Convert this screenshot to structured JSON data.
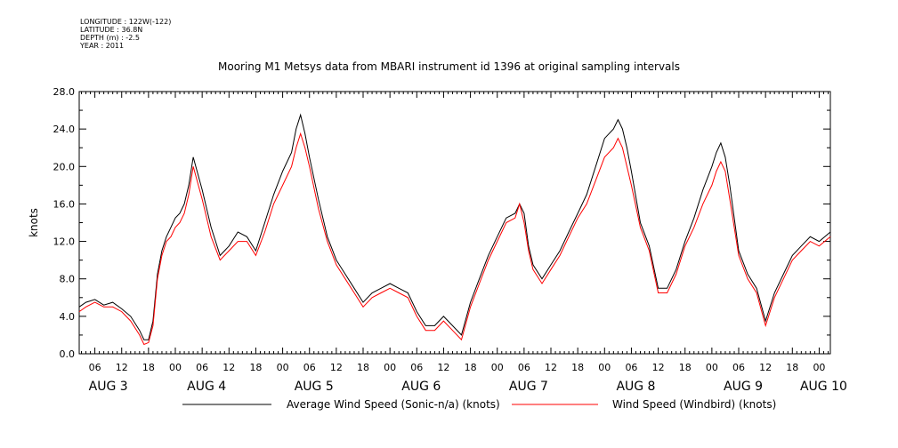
{
  "header": {
    "meta_lines": [
      "LONGITUDE : 122W(-122)",
      "LATITUDE : 36.8N",
      "DEPTH (m) : -2.5",
      "YEAR : 2011"
    ],
    "title": "Mooring M1 Metsys data from MBARI instrument id 1396 at original sampling intervals"
  },
  "chart_data": {
    "type": "line",
    "title": "Mooring M1 Metsys data from MBARI instrument id 1396 at original sampling intervals",
    "ylabel": "knots",
    "xlabel": "",
    "ylim": [
      0,
      28
    ],
    "yticks": [
      "0.0",
      "4.0",
      "8.0",
      "12.0",
      "16.0",
      "20.0",
      "24.0",
      "28.0"
    ],
    "x_unit": "hours since Aug 3 00:00",
    "xlim": [
      2.5,
      170.5
    ],
    "hour_ticks": [
      {
        "x": 6,
        "label": "06"
      },
      {
        "x": 12,
        "label": "12"
      },
      {
        "x": 18,
        "label": "18"
      },
      {
        "x": 24,
        "label": "00"
      },
      {
        "x": 30,
        "label": "06"
      },
      {
        "x": 36,
        "label": "12"
      },
      {
        "x": 42,
        "label": "18"
      },
      {
        "x": 48,
        "label": "00"
      },
      {
        "x": 54,
        "label": "06"
      },
      {
        "x": 60,
        "label": "12"
      },
      {
        "x": 66,
        "label": "18"
      },
      {
        "x": 72,
        "label": "00"
      },
      {
        "x": 78,
        "label": "06"
      },
      {
        "x": 84,
        "label": "12"
      },
      {
        "x": 90,
        "label": "18"
      },
      {
        "x": 96,
        "label": "00"
      },
      {
        "x": 102,
        "label": "06"
      },
      {
        "x": 108,
        "label": "12"
      },
      {
        "x": 114,
        "label": "18"
      },
      {
        "x": 120,
        "label": "00"
      },
      {
        "x": 126,
        "label": "06"
      },
      {
        "x": 132,
        "label": "12"
      },
      {
        "x": 138,
        "label": "18"
      },
      {
        "x": 144,
        "label": "00"
      },
      {
        "x": 150,
        "label": "06"
      },
      {
        "x": 156,
        "label": "12"
      },
      {
        "x": 162,
        "label": "18"
      },
      {
        "x": 168,
        "label": "00"
      }
    ],
    "day_labels": [
      {
        "x": 9,
        "label": "AUG  3"
      },
      {
        "x": 31,
        "label": "AUG  4"
      },
      {
        "x": 55,
        "label": "AUG  5"
      },
      {
        "x": 79,
        "label": "AUG  6"
      },
      {
        "x": 103,
        "label": "AUG  7"
      },
      {
        "x": 127,
        "label": "AUG  8"
      },
      {
        "x": 151,
        "label": "AUG  9"
      },
      {
        "x": 169,
        "label": "AUG 10"
      }
    ],
    "grid": false,
    "legend_position": "bottom",
    "series": [
      {
        "name": "Average Wind Speed (Sonic-n/a) (knots)",
        "color": "#000000",
        "x": [
          2.5,
          4,
          6,
          8,
          10,
          12,
          14,
          16,
          17,
          18,
          19,
          20,
          21,
          22,
          23,
          24,
          25,
          26,
          27,
          28,
          30,
          32,
          34,
          36,
          38,
          40,
          42,
          44,
          46,
          48,
          50,
          51,
          52,
          53,
          54,
          56,
          58,
          60,
          62,
          64,
          66,
          68,
          70,
          72,
          74,
          76,
          78,
          80,
          82,
          84,
          86,
          88,
          90,
          92,
          94,
          96,
          98,
          100,
          101,
          102,
          103,
          104,
          106,
          108,
          110,
          112,
          114,
          116,
          118,
          120,
          122,
          123,
          124,
          125,
          126,
          128,
          130,
          132,
          134,
          136,
          138,
          140,
          142,
          144,
          145,
          146,
          147,
          148,
          150,
          152,
          154,
          156,
          158,
          160,
          162,
          164,
          166,
          168,
          170.5
        ],
        "y": [
          5.0,
          5.5,
          5.8,
          5.2,
          5.5,
          4.8,
          4.0,
          2.5,
          1.5,
          1.5,
          3.5,
          8.5,
          11.0,
          12.5,
          13.5,
          14.5,
          15.0,
          16.0,
          18.0,
          21.0,
          17.5,
          13.5,
          10.5,
          11.5,
          13.0,
          12.5,
          11.0,
          14.0,
          17.0,
          19.5,
          21.5,
          24.0,
          25.5,
          23.5,
          21.0,
          16.5,
          12.5,
          10.0,
          8.5,
          7.0,
          5.5,
          6.5,
          7.0,
          7.5,
          7.0,
          6.5,
          4.5,
          3.0,
          3.0,
          4.0,
          3.0,
          2.0,
          5.5,
          8.0,
          10.5,
          12.5,
          14.5,
          15.0,
          16.0,
          15.0,
          11.5,
          9.5,
          8.0,
          9.5,
          11.0,
          13.0,
          15.0,
          17.0,
          20.0,
          23.0,
          24.0,
          25.0,
          24.0,
          22.0,
          19.5,
          14.0,
          11.5,
          7.0,
          7.0,
          9.0,
          12.0,
          14.5,
          17.5,
          20.0,
          21.5,
          22.5,
          21.0,
          18.0,
          11.0,
          8.5,
          7.0,
          3.5,
          6.5,
          8.5,
          10.5,
          11.5,
          12.5,
          12.0,
          13.0
        ]
      },
      {
        "name": "Wind Speed (Windbird) (knots)",
        "color": "#ff0000",
        "x": [
          2.5,
          4,
          6,
          8,
          10,
          12,
          14,
          16,
          17,
          18,
          19,
          20,
          21,
          22,
          23,
          24,
          25,
          26,
          27,
          28,
          30,
          32,
          34,
          36,
          38,
          40,
          42,
          44,
          46,
          48,
          50,
          51,
          52,
          53,
          54,
          56,
          58,
          60,
          62,
          64,
          66,
          68,
          70,
          72,
          74,
          76,
          78,
          80,
          82,
          84,
          86,
          88,
          90,
          92,
          94,
          96,
          98,
          100,
          101,
          102,
          103,
          104,
          106,
          108,
          110,
          112,
          114,
          116,
          118,
          120,
          122,
          123,
          124,
          125,
          126,
          128,
          130,
          132,
          134,
          136,
          138,
          140,
          142,
          144,
          145,
          146,
          147,
          148,
          150,
          152,
          154,
          156,
          158,
          160,
          162,
          164,
          166,
          168,
          170.5
        ],
        "y": [
          4.5,
          5.0,
          5.5,
          5.0,
          5.0,
          4.5,
          3.5,
          2.0,
          1.0,
          1.2,
          3.0,
          8.0,
          10.5,
          12.0,
          12.5,
          13.5,
          14.0,
          15.0,
          17.0,
          20.0,
          16.5,
          12.5,
          10.0,
          11.0,
          12.0,
          12.0,
          10.5,
          13.0,
          16.0,
          18.0,
          20.0,
          22.0,
          23.5,
          22.0,
          20.0,
          15.5,
          12.0,
          9.5,
          8.0,
          6.5,
          5.0,
          6.0,
          6.5,
          7.0,
          6.5,
          6.0,
          4.0,
          2.5,
          2.5,
          3.5,
          2.5,
          1.5,
          5.0,
          7.5,
          10.0,
          12.0,
          14.0,
          14.5,
          16.0,
          14.0,
          11.0,
          9.0,
          7.5,
          9.0,
          10.5,
          12.5,
          14.5,
          16.0,
          18.5,
          21.0,
          22.0,
          23.0,
          22.0,
          20.0,
          18.0,
          13.5,
          11.0,
          6.5,
          6.5,
          8.5,
          11.5,
          13.5,
          16.0,
          18.0,
          19.5,
          20.5,
          19.5,
          16.5,
          10.5,
          8.0,
          6.5,
          3.0,
          6.0,
          8.0,
          10.0,
          11.0,
          12.0,
          11.5,
          12.5
        ]
      }
    ]
  }
}
